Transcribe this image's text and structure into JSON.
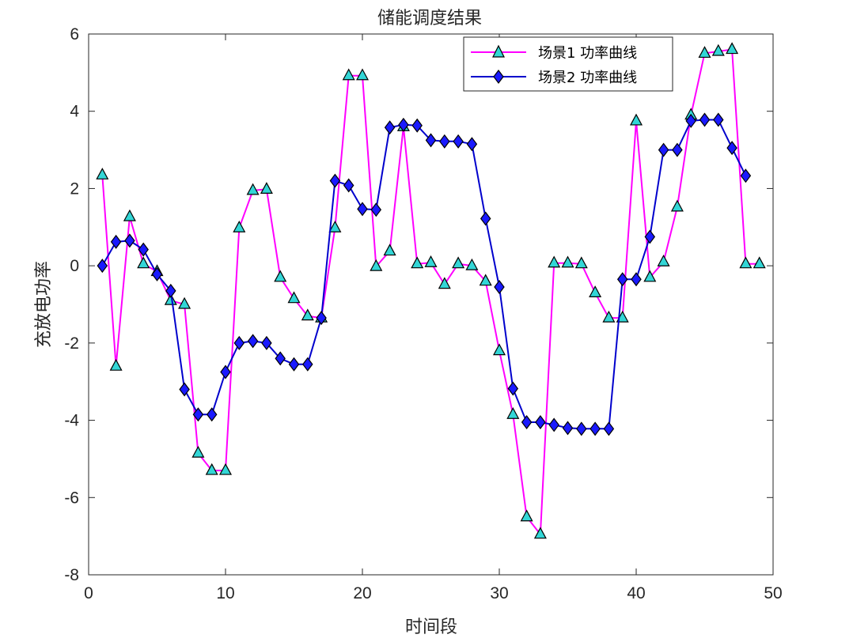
{
  "chart_data": {
    "type": "line",
    "title": "储能调度结果",
    "xlabel": "时间段",
    "ylabel": "充放电功率",
    "xlim": [
      0,
      50
    ],
    "ylim": [
      -8,
      6
    ],
    "xticks": [
      0,
      10,
      20,
      30,
      40,
      50
    ],
    "yticks": [
      -8,
      -6,
      -4,
      -2,
      0,
      2,
      4,
      6
    ],
    "grid": false,
    "legend_position": "top-right",
    "series": [
      {
        "name": "场景1 功率曲线",
        "color": "#ff00ff",
        "marker": "triangle",
        "marker_fill": "#33d6d6",
        "x": [
          1,
          2,
          3,
          4,
          5,
          6,
          7,
          8,
          9,
          10,
          11,
          12,
          13,
          14,
          15,
          16,
          17,
          18,
          19,
          20,
          21,
          22,
          23,
          24,
          25,
          26,
          27,
          28,
          29,
          30,
          31,
          32,
          33,
          34,
          35,
          36,
          37,
          38,
          39,
          40,
          41,
          42,
          43,
          44,
          45,
          46,
          47,
          48,
          49
        ],
        "values": [
          2.35,
          -2.6,
          1.27,
          0.05,
          -0.15,
          -0.9,
          -1.0,
          -4.85,
          -5.3,
          -5.3,
          0.98,
          1.95,
          1.98,
          -0.3,
          -0.85,
          -1.3,
          -1.35,
          0.98,
          4.92,
          4.92,
          -0.02,
          0.38,
          3.6,
          0.05,
          0.08,
          -0.48,
          0.05,
          0.0,
          -0.4,
          -2.2,
          -3.85,
          -6.5,
          -6.95,
          0.07,
          0.07,
          0.05,
          -0.7,
          -1.35,
          -1.35,
          3.75,
          -0.3,
          0.1,
          1.52,
          3.9,
          5.5,
          5.55,
          5.6,
          0.05,
          0.05
        ]
      },
      {
        "name": "场景2 功率曲线",
        "color": "#0000cc",
        "marker": "diamond",
        "marker_fill": "#1a1aff",
        "x": [
          1,
          2,
          3,
          4,
          5,
          6,
          7,
          8,
          9,
          10,
          11,
          12,
          13,
          14,
          15,
          16,
          17,
          18,
          19,
          20,
          21,
          22,
          23,
          24,
          25,
          26,
          27,
          28,
          29,
          30,
          31,
          32,
          33,
          34,
          35,
          36,
          37,
          38,
          39,
          40,
          41,
          42,
          43,
          44,
          45,
          46,
          47,
          48
        ],
        "values": [
          0.0,
          0.62,
          0.65,
          0.42,
          -0.22,
          -0.65,
          -3.2,
          -3.85,
          -3.85,
          -2.75,
          -2.0,
          -1.95,
          -2.0,
          -2.4,
          -2.55,
          -2.55,
          -1.35,
          2.2,
          2.08,
          1.47,
          1.45,
          3.58,
          3.65,
          3.63,
          3.25,
          3.22,
          3.22,
          3.15,
          1.22,
          -0.55,
          -3.18,
          -4.05,
          -4.05,
          -4.12,
          -4.2,
          -4.22,
          -4.22,
          -4.22,
          -0.35,
          -0.35,
          0.75,
          3.0,
          3.0,
          3.75,
          3.78,
          3.78,
          3.05,
          2.33
        ]
      }
    ]
  }
}
